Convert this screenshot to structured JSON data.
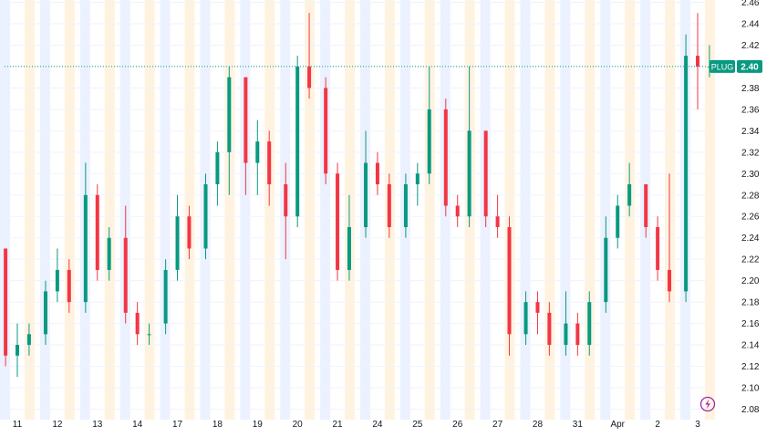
{
  "chart_data": {
    "type": "candlestick",
    "symbol": "PLUG",
    "last_price_label": "2.40",
    "y_ticks": [
      "2.46",
      "2.44",
      "2.42",
      "2.40",
      "2.38",
      "2.36",
      "2.34",
      "2.32",
      "2.30",
      "2.28",
      "2.26",
      "2.24",
      "2.22",
      "2.20",
      "2.18",
      "2.16",
      "2.14",
      "2.12",
      "2.10",
      "2.08"
    ],
    "x_ticks": [
      "11",
      "12",
      "13",
      "14",
      "17",
      "18",
      "19",
      "20",
      "21",
      "24",
      "25",
      "26",
      "27",
      "28",
      "31",
      "Apr",
      "2",
      "3"
    ],
    "ylim": [
      2.08,
      2.46
    ],
    "last_price": 2.4,
    "grid": true,
    "series": [
      {
        "session": "11",
        "ohlc": [
          [
            2.23,
            2.23,
            2.12,
            2.13
          ],
          [
            2.13,
            2.16,
            2.11,
            2.14
          ],
          [
            2.14,
            2.16,
            2.13,
            2.15
          ]
        ]
      },
      {
        "session": "12",
        "ohlc": [
          [
            2.15,
            2.2,
            2.14,
            2.19
          ],
          [
            2.19,
            2.23,
            2.18,
            2.21
          ],
          [
            2.21,
            2.22,
            2.17,
            2.18
          ]
        ]
      },
      {
        "session": "13",
        "ohlc": [
          [
            2.18,
            2.31,
            2.17,
            2.28
          ],
          [
            2.28,
            2.29,
            2.2,
            2.21
          ],
          [
            2.21,
            2.25,
            2.2,
            2.24
          ]
        ]
      },
      {
        "session": "14",
        "ohlc": [
          [
            2.24,
            2.27,
            2.16,
            2.17
          ],
          [
            2.17,
            2.18,
            2.14,
            2.15
          ],
          [
            2.15,
            2.16,
            2.14,
            2.15
          ]
        ]
      },
      {
        "session": "17",
        "ohlc": [
          [
            2.16,
            2.22,
            2.15,
            2.21
          ],
          [
            2.21,
            2.28,
            2.2,
            2.26
          ],
          [
            2.26,
            2.27,
            2.22,
            2.23
          ]
        ]
      },
      {
        "session": "18",
        "ohlc": [
          [
            2.23,
            2.3,
            2.22,
            2.29
          ],
          [
            2.29,
            2.33,
            2.27,
            2.32
          ],
          [
            2.32,
            2.4,
            2.28,
            2.39
          ]
        ]
      },
      {
        "session": "19",
        "ohlc": [
          [
            2.39,
            2.39,
            2.28,
            2.31
          ],
          [
            2.31,
            2.35,
            2.28,
            2.33
          ],
          [
            2.33,
            2.34,
            2.27,
            2.29
          ]
        ]
      },
      {
        "session": "20",
        "ohlc": [
          [
            2.29,
            2.31,
            2.22,
            2.26
          ],
          [
            2.26,
            2.41,
            2.25,
            2.4
          ],
          [
            2.4,
            2.45,
            2.37,
            2.38
          ]
        ]
      },
      {
        "session": "21",
        "ohlc": [
          [
            2.38,
            2.39,
            2.29,
            2.3
          ],
          [
            2.3,
            2.31,
            2.2,
            2.21
          ],
          [
            2.21,
            2.28,
            2.2,
            2.25
          ]
        ]
      },
      {
        "session": "24",
        "ohlc": [
          [
            2.25,
            2.34,
            2.24,
            2.31
          ],
          [
            2.31,
            2.32,
            2.28,
            2.29
          ],
          [
            2.29,
            2.3,
            2.24,
            2.25
          ]
        ]
      },
      {
        "session": "25",
        "ohlc": [
          [
            2.25,
            2.3,
            2.24,
            2.29
          ],
          [
            2.29,
            2.31,
            2.27,
            2.3
          ],
          [
            2.3,
            2.4,
            2.29,
            2.36
          ]
        ]
      },
      {
        "session": "26",
        "ohlc": [
          [
            2.36,
            2.37,
            2.26,
            2.27
          ],
          [
            2.27,
            2.28,
            2.25,
            2.26
          ],
          [
            2.26,
            2.4,
            2.25,
            2.34
          ]
        ]
      },
      {
        "session": "27",
        "ohlc": [
          [
            2.34,
            2.34,
            2.25,
            2.26
          ],
          [
            2.26,
            2.28,
            2.24,
            2.25
          ],
          [
            2.25,
            2.26,
            2.13,
            2.15
          ]
        ]
      },
      {
        "session": "28",
        "ohlc": [
          [
            2.15,
            2.19,
            2.14,
            2.18
          ],
          [
            2.18,
            2.19,
            2.15,
            2.17
          ],
          [
            2.17,
            2.18,
            2.13,
            2.14
          ]
        ]
      },
      {
        "session": "31",
        "ohlc": [
          [
            2.14,
            2.19,
            2.13,
            2.16
          ],
          [
            2.16,
            2.17,
            2.13,
            2.14
          ],
          [
            2.14,
            2.19,
            2.13,
            2.18
          ]
        ]
      },
      {
        "session": "Apr",
        "ohlc": [
          [
            2.18,
            2.26,
            2.17,
            2.24
          ],
          [
            2.24,
            2.28,
            2.23,
            2.27
          ],
          [
            2.27,
            2.31,
            2.26,
            2.29
          ]
        ]
      },
      {
        "session": "2",
        "ohlc": [
          [
            2.29,
            2.29,
            2.24,
            2.25
          ],
          [
            2.25,
            2.26,
            2.2,
            2.21
          ],
          [
            2.21,
            2.3,
            2.18,
            2.19
          ]
        ]
      },
      {
        "session": "3",
        "ohlc": [
          [
            2.19,
            2.43,
            2.18,
            2.41
          ],
          [
            2.41,
            2.45,
            2.36,
            2.4
          ],
          [
            2.4,
            2.42,
            2.39,
            2.4
          ]
        ]
      }
    ]
  },
  "colors": {
    "up": "#089981",
    "down": "#f23645",
    "grid": "#f0f3fa",
    "band_blue": "#ebf1ff",
    "band_orange": "#fff3e0",
    "axis_text": "#131722",
    "last_line": "#089981",
    "badge_text": "#ffffff",
    "flash_icon": "#9c27b0"
  },
  "icons": {
    "flash": "lightning-icon"
  }
}
